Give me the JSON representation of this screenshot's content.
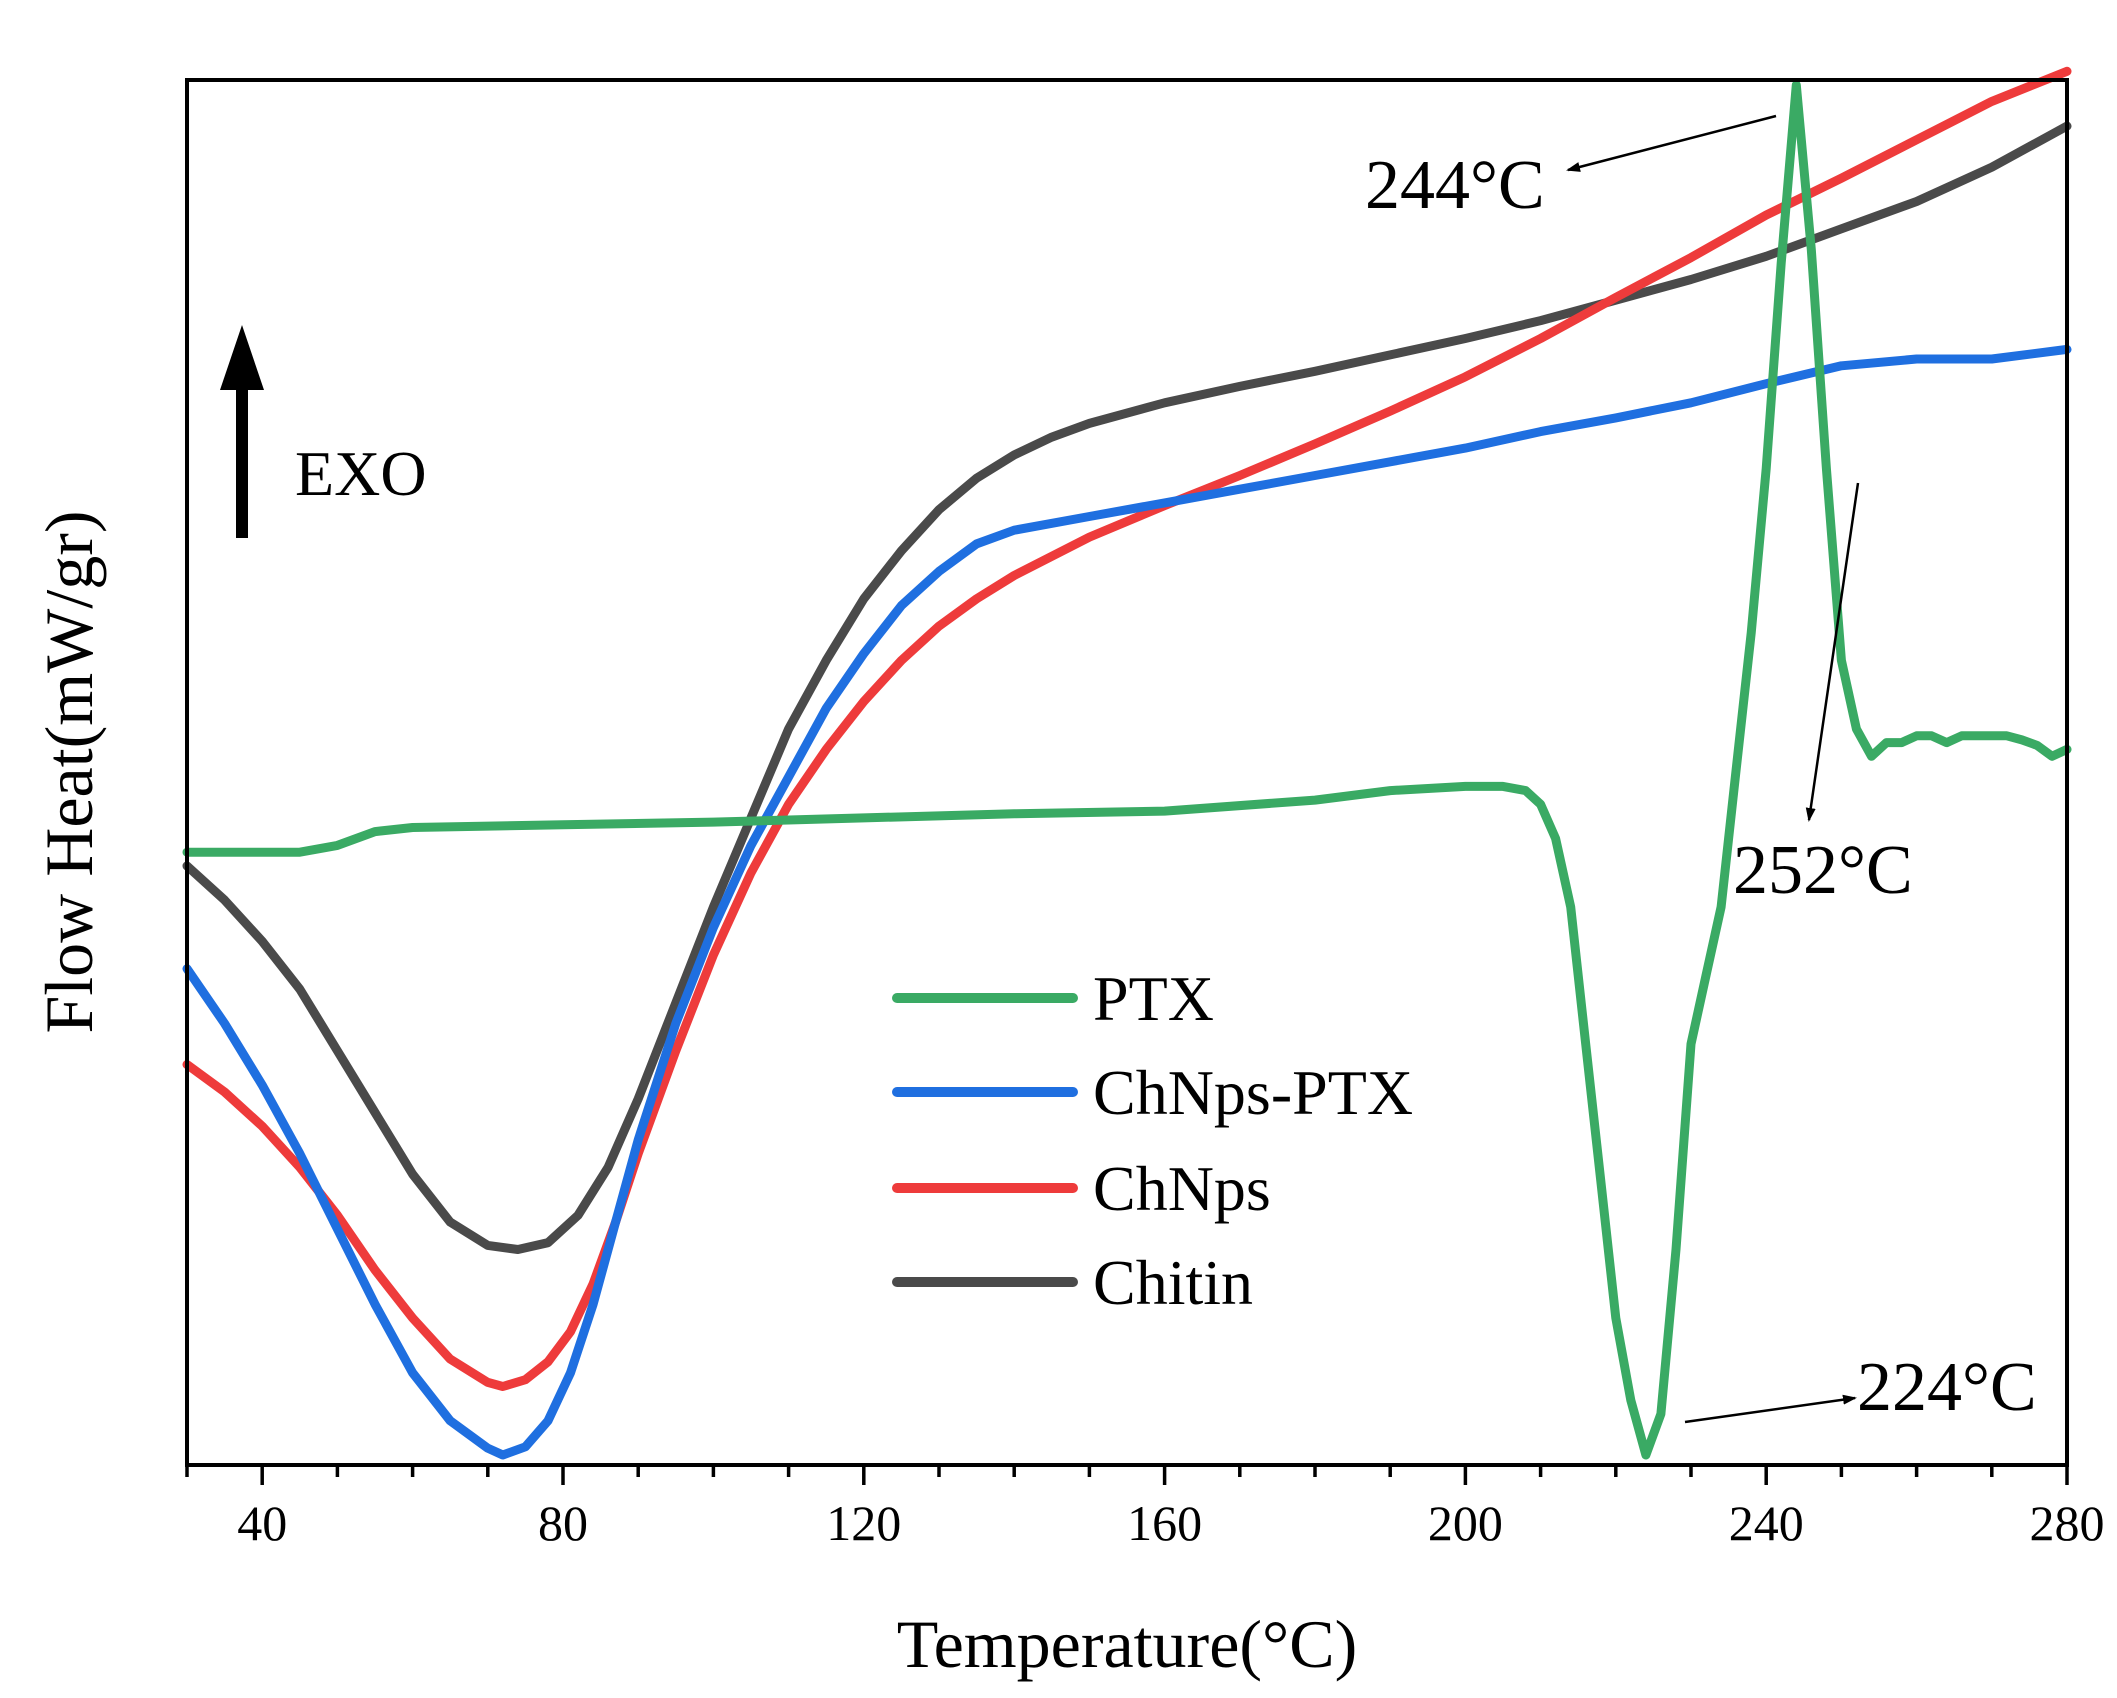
{
  "chart_data": {
    "type": "line",
    "xlabel": "Temperature(°C)",
    "ylabel": "Flow Heat(mW/gr)",
    "xlim": [
      30,
      280
    ],
    "ylim": [
      0,
      100
    ],
    "x_ticks": [
      40,
      80,
      120,
      160,
      200,
      240,
      280
    ],
    "x_tick_labels": [
      "40",
      "80",
      "120",
      "160",
      "200",
      "240",
      "280"
    ],
    "y_ticks_shown": false,
    "grid": false,
    "legend_position": "center",
    "exo_label": "EXO",
    "series": [
      {
        "name": "PTX",
        "color": "#3aaa64",
        "points": [
          [
            30,
            44
          ],
          [
            40,
            44
          ],
          [
            45,
            44
          ],
          [
            50,
            44.5
          ],
          [
            55,
            45.5
          ],
          [
            60,
            45.8
          ],
          [
            80,
            46
          ],
          [
            100,
            46.2
          ],
          [
            120,
            46.5
          ],
          [
            140,
            46.8
          ],
          [
            160,
            47
          ],
          [
            180,
            47.8
          ],
          [
            190,
            48.5
          ],
          [
            200,
            48.8
          ],
          [
            205,
            48.8
          ],
          [
            208,
            48.5
          ],
          [
            210,
            47.5
          ],
          [
            212,
            45
          ],
          [
            214,
            40
          ],
          [
            216,
            30
          ],
          [
            218,
            20
          ],
          [
            220,
            10
          ],
          [
            222,
            4
          ],
          [
            224,
            0
          ],
          [
            226,
            3
          ],
          [
            228,
            15
          ],
          [
            230,
            30
          ],
          [
            232,
            35
          ],
          [
            234,
            40
          ],
          [
            236,
            50
          ],
          [
            238,
            60
          ],
          [
            240,
            72
          ],
          [
            242,
            87
          ],
          [
            244,
            100
          ],
          [
            246,
            88
          ],
          [
            248,
            72
          ],
          [
            250,
            58
          ],
          [
            252,
            53
          ],
          [
            254,
            51
          ],
          [
            256,
            52
          ],
          [
            258,
            52
          ],
          [
            260,
            52.5
          ],
          [
            262,
            52.5
          ],
          [
            264,
            52
          ],
          [
            266,
            52.5
          ],
          [
            268,
            52.5
          ],
          [
            270,
            52.5
          ],
          [
            272,
            52.5
          ],
          [
            274,
            52.2
          ],
          [
            276,
            51.8
          ],
          [
            278,
            51
          ],
          [
            280,
            51.5
          ]
        ]
      },
      {
        "name": "ChNps-PTX",
        "color": "#1f6fe0",
        "points": [
          [
            30,
            35.5
          ],
          [
            35,
            31.5
          ],
          [
            40,
            27
          ],
          [
            45,
            22
          ],
          [
            50,
            16.5
          ],
          [
            55,
            11
          ],
          [
            60,
            6
          ],
          [
            65,
            2.5
          ],
          [
            70,
            0.5
          ],
          [
            72,
            0
          ],
          [
            75,
            0.6
          ],
          [
            78,
            2.5
          ],
          [
            81,
            6
          ],
          [
            84,
            11
          ],
          [
            87,
            17
          ],
          [
            90,
            23
          ],
          [
            95,
            31.5
          ],
          [
            100,
            38.5
          ],
          [
            105,
            44.5
          ],
          [
            110,
            49.5
          ],
          [
            115,
            54.5
          ],
          [
            120,
            58.5
          ],
          [
            125,
            62
          ],
          [
            130,
            64.5
          ],
          [
            135,
            66.5
          ],
          [
            140,
            67.5
          ],
          [
            150,
            68.5
          ],
          [
            160,
            69.5
          ],
          [
            170,
            70.5
          ],
          [
            180,
            71.5
          ],
          [
            190,
            72.5
          ],
          [
            200,
            73.5
          ],
          [
            210,
            74.7
          ],
          [
            220,
            75.7
          ],
          [
            230,
            76.8
          ],
          [
            240,
            78.2
          ],
          [
            250,
            79.5
          ],
          [
            260,
            80
          ],
          [
            270,
            80
          ],
          [
            280,
            80.7
          ]
        ]
      },
      {
        "name": "ChNps",
        "color": "#ee3b3b",
        "points": [
          [
            30,
            28.5
          ],
          [
            35,
            26.5
          ],
          [
            40,
            24
          ],
          [
            45,
            21
          ],
          [
            50,
            17.5
          ],
          [
            55,
            13.5
          ],
          [
            60,
            10
          ],
          [
            65,
            7
          ],
          [
            70,
            5.3
          ],
          [
            72,
            5
          ],
          [
            75,
            5.5
          ],
          [
            78,
            6.8
          ],
          [
            81,
            9
          ],
          [
            84,
            12.5
          ],
          [
            87,
            17
          ],
          [
            90,
            22
          ],
          [
            95,
            29.5
          ],
          [
            100,
            36.5
          ],
          [
            105,
            42.5
          ],
          [
            110,
            47.5
          ],
          [
            115,
            51.5
          ],
          [
            120,
            55
          ],
          [
            125,
            58
          ],
          [
            130,
            60.5
          ],
          [
            135,
            62.5
          ],
          [
            140,
            64.2
          ],
          [
            150,
            67
          ],
          [
            160,
            69.3
          ],
          [
            170,
            71.5
          ],
          [
            180,
            73.8
          ],
          [
            190,
            76.2
          ],
          [
            200,
            78.7
          ],
          [
            210,
            81.5
          ],
          [
            220,
            84.5
          ],
          [
            230,
            87.4
          ],
          [
            240,
            90.5
          ],
          [
            250,
            93.2
          ],
          [
            260,
            96
          ],
          [
            270,
            98.8
          ],
          [
            280,
            101
          ]
        ]
      },
      {
        "name": "Chitin",
        "color": "#4a4a4a",
        "points": [
          [
            30,
            43
          ],
          [
            35,
            40.5
          ],
          [
            40,
            37.5
          ],
          [
            45,
            34
          ],
          [
            50,
            29.5
          ],
          [
            55,
            25
          ],
          [
            60,
            20.5
          ],
          [
            65,
            17
          ],
          [
            70,
            15.3
          ],
          [
            74,
            15
          ],
          [
            78,
            15.5
          ],
          [
            82,
            17.5
          ],
          [
            86,
            21
          ],
          [
            90,
            26
          ],
          [
            95,
            33
          ],
          [
            100,
            40
          ],
          [
            105,
            46.5
          ],
          [
            110,
            53
          ],
          [
            115,
            58
          ],
          [
            120,
            62.5
          ],
          [
            125,
            66
          ],
          [
            130,
            69
          ],
          [
            135,
            71.3
          ],
          [
            140,
            73
          ],
          [
            145,
            74.3
          ],
          [
            150,
            75.3
          ],
          [
            160,
            76.8
          ],
          [
            170,
            78
          ],
          [
            180,
            79.1
          ],
          [
            190,
            80.3
          ],
          [
            200,
            81.5
          ],
          [
            210,
            82.8
          ],
          [
            220,
            84.3
          ],
          [
            230,
            85.8
          ],
          [
            240,
            87.5
          ],
          [
            250,
            89.5
          ],
          [
            260,
            91.5
          ],
          [
            270,
            94
          ],
          [
            280,
            97
          ]
        ]
      }
    ],
    "annotations": [
      {
        "text": "244°C",
        "x": 244,
        "y": 100
      },
      {
        "text": "252°C",
        "x": 252,
        "y": 53
      },
      {
        "text": "224°C",
        "x": 224,
        "y": 0
      }
    ]
  }
}
